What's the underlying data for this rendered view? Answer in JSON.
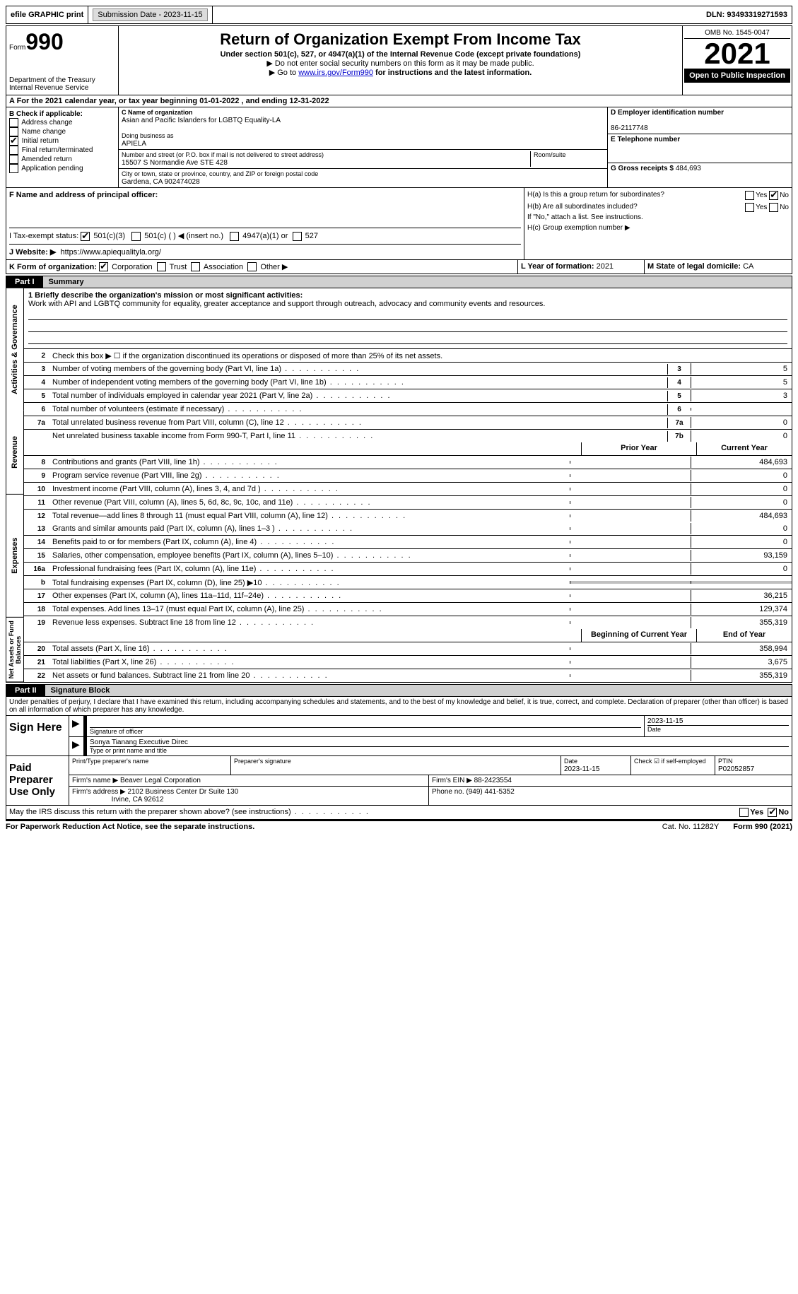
{
  "topbar": {
    "efile": "efile GRAPHIC print",
    "submission": "Submission Date - 2023-11-15",
    "dln": "DLN: 93493319271593"
  },
  "header": {
    "form_word": "Form",
    "form_num": "990",
    "dept": "Department of the Treasury\nInternal Revenue Service",
    "title": "Return of Organization Exempt From Income Tax",
    "subtitle": "Under section 501(c), 527, or 4947(a)(1) of the Internal Revenue Code (except private foundations)",
    "note1": "▶ Do not enter social security numbers on this form as it may be made public.",
    "note2_pre": "▶ Go to ",
    "note2_link": "www.irs.gov/Form990",
    "note2_post": " for instructions and the latest information.",
    "omb": "OMB No. 1545-0047",
    "year": "2021",
    "open": "Open to Public Inspection"
  },
  "rowA": "A For the 2021 calendar year, or tax year beginning 01-01-2022   , and ending 12-31-2022",
  "sectionB": {
    "hdr": "B Check if applicable:",
    "items": [
      "Address change",
      "Name change",
      "Initial return",
      "Final return/terminated",
      "Amended return",
      "Application pending"
    ],
    "checked_idx": 2
  },
  "sectionC": {
    "name_lbl": "C Name of organization",
    "name": "Asian and Pacific Islanders for LGBTQ Equality-LA",
    "dba_lbl": "Doing business as",
    "dba": "APIELA",
    "addr_lbl": "Number and street (or P.O. box if mail is not delivered to street address)",
    "addr": "15507 S Normandie Ave STE 428",
    "room_lbl": "Room/suite",
    "city_lbl": "City or town, state or province, country, and ZIP or foreign postal code",
    "city": "Gardena, CA  902474028"
  },
  "sectionD": {
    "ein_lbl": "D Employer identification number",
    "ein": "86-2117748",
    "tel_lbl": "E Telephone number",
    "gross_lbl": "G Gross receipts $",
    "gross": "484,693"
  },
  "sectionF": {
    "lbl": "F Name and address of principal officer:"
  },
  "sectionH": {
    "a": "H(a)  Is this a group return for subordinates?",
    "b": "H(b)  Are all subordinates included?",
    "note": "If \"No,\" attach a list. See instructions.",
    "c": "H(c)  Group exemption number ▶",
    "yes": "Yes",
    "no": "No"
  },
  "sectionI": {
    "lbl": "I   Tax-exempt status:",
    "opts": [
      "501(c)(3)",
      "501(c) (  ) ◀ (insert no.)",
      "4947(a)(1) or",
      "527"
    ]
  },
  "sectionJ": {
    "lbl": "J   Website: ▶",
    "val": "https://www.apiequalityla.org/"
  },
  "sectionK": {
    "lbl": "K Form of organization:",
    "opts": [
      "Corporation",
      "Trust",
      "Association",
      "Other ▶"
    ]
  },
  "sectionL": {
    "lbl": "L Year of formation:",
    "val": "2021"
  },
  "sectionM": {
    "lbl": "M State of legal domicile:",
    "val": "CA"
  },
  "part1": {
    "tab": "Part I",
    "title": "Summary",
    "mission_lbl": "1   Briefly describe the organization's mission or most significant activities:",
    "mission": "Work with API and LGBTQ community for equality, greater acceptance and support through outreach, advocacy and community events and resources.",
    "line2": "Check this box ▶ ☐  if the organization discontinued its operations or disposed of more than 25% of its net assets.",
    "vlabels": [
      "Activities & Governance",
      "Revenue",
      "Expenses",
      "Net Assets or Fund Balances"
    ],
    "gov_lines": [
      {
        "n": "3",
        "t": "Number of voting members of the governing body (Part VI, line 1a)",
        "box": "3",
        "v": "5"
      },
      {
        "n": "4",
        "t": "Number of independent voting members of the governing body (Part VI, line 1b)",
        "box": "4",
        "v": "5"
      },
      {
        "n": "5",
        "t": "Total number of individuals employed in calendar year 2021 (Part V, line 2a)",
        "box": "5",
        "v": "3"
      },
      {
        "n": "6",
        "t": "Total number of volunteers (estimate if necessary)",
        "box": "6",
        "v": ""
      },
      {
        "n": "7a",
        "t": "Total unrelated business revenue from Part VIII, column (C), line 12",
        "box": "7a",
        "v": "0"
      },
      {
        "n": "",
        "t": "Net unrelated business taxable income from Form 990-T, Part I, line 11",
        "box": "7b",
        "v": "0"
      }
    ],
    "colhdr": {
      "prior": "Prior Year",
      "current": "Current Year"
    },
    "rev_lines": [
      {
        "n": "8",
        "t": "Contributions and grants (Part VIII, line 1h)",
        "p": "",
        "c": "484,693"
      },
      {
        "n": "9",
        "t": "Program service revenue (Part VIII, line 2g)",
        "p": "",
        "c": "0"
      },
      {
        "n": "10",
        "t": "Investment income (Part VIII, column (A), lines 3, 4, and 7d )",
        "p": "",
        "c": "0"
      },
      {
        "n": "11",
        "t": "Other revenue (Part VIII, column (A), lines 5, 6d, 8c, 9c, 10c, and 11e)",
        "p": "",
        "c": "0"
      },
      {
        "n": "12",
        "t": "Total revenue—add lines 8 through 11 (must equal Part VIII, column (A), line 12)",
        "p": "",
        "c": "484,693"
      }
    ],
    "exp_lines": [
      {
        "n": "13",
        "t": "Grants and similar amounts paid (Part IX, column (A), lines 1–3 )",
        "p": "",
        "c": "0"
      },
      {
        "n": "14",
        "t": "Benefits paid to or for members (Part IX, column (A), line 4)",
        "p": "",
        "c": "0"
      },
      {
        "n": "15",
        "t": "Salaries, other compensation, employee benefits (Part IX, column (A), lines 5–10)",
        "p": "",
        "c": "93,159"
      },
      {
        "n": "16a",
        "t": "Professional fundraising fees (Part IX, column (A), line 11e)",
        "p": "",
        "c": "0"
      },
      {
        "n": "b",
        "t": "Total fundraising expenses (Part IX, column (D), line 25) ▶10",
        "p": "grey",
        "c": "grey"
      },
      {
        "n": "17",
        "t": "Other expenses (Part IX, column (A), lines 11a–11d, 11f–24e)",
        "p": "",
        "c": "36,215"
      },
      {
        "n": "18",
        "t": "Total expenses. Add lines 13–17 (must equal Part IX, column (A), line 25)",
        "p": "",
        "c": "129,374"
      },
      {
        "n": "19",
        "t": "Revenue less expenses. Subtract line 18 from line 12",
        "p": "",
        "c": "355,319"
      }
    ],
    "net_hdr": {
      "b": "Beginning of Current Year",
      "e": "End of Year"
    },
    "net_lines": [
      {
        "n": "20",
        "t": "Total assets (Part X, line 16)",
        "p": "",
        "c": "358,994"
      },
      {
        "n": "21",
        "t": "Total liabilities (Part X, line 26)",
        "p": "",
        "c": "3,675"
      },
      {
        "n": "22",
        "t": "Net assets or fund balances. Subtract line 21 from line 20",
        "p": "",
        "c": "355,319"
      }
    ]
  },
  "part2": {
    "tab": "Part II",
    "title": "Signature Block",
    "penalties": "Under penalties of perjury, I declare that I have examined this return, including accompanying schedules and statements, and to the best of my knowledge and belief, it is true, correct, and complete. Declaration of preparer (other than officer) is based on all information of which preparer has any knowledge.",
    "sign_lbl": "Sign Here",
    "sig_officer": "Signature of officer",
    "sig_date": "2023-11-15",
    "date_lbl": "Date",
    "officer_name": "Sonya Tianang  Executive Direc",
    "type_name": "Type or print name and title",
    "paid_lbl": "Paid Preparer Use Only",
    "prep_name_lbl": "Print/Type preparer's name",
    "prep_sig_lbl": "Preparer's signature",
    "prep_date": "2023-11-15",
    "check_self": "Check ☑ if self-employed",
    "ptin_lbl": "PTIN",
    "ptin": "P02052857",
    "firm_name_lbl": "Firm's name    ▶",
    "firm_name": "Beaver Legal Corporation",
    "firm_ein_lbl": "Firm's EIN ▶",
    "firm_ein": "88-2423554",
    "firm_addr_lbl": "Firm's address ▶",
    "firm_addr": "2102 Business Center Dr Suite 130",
    "firm_city": "Irvine, CA  92612",
    "phone_lbl": "Phone no.",
    "phone": "(949) 441-5352",
    "discuss": "May the IRS discuss this return with the preparer shown above? (see instructions)"
  },
  "footer": {
    "l": "For Paperwork Reduction Act Notice, see the separate instructions.",
    "c": "Cat. No. 11282Y",
    "r": "Form 990 (2021)"
  }
}
